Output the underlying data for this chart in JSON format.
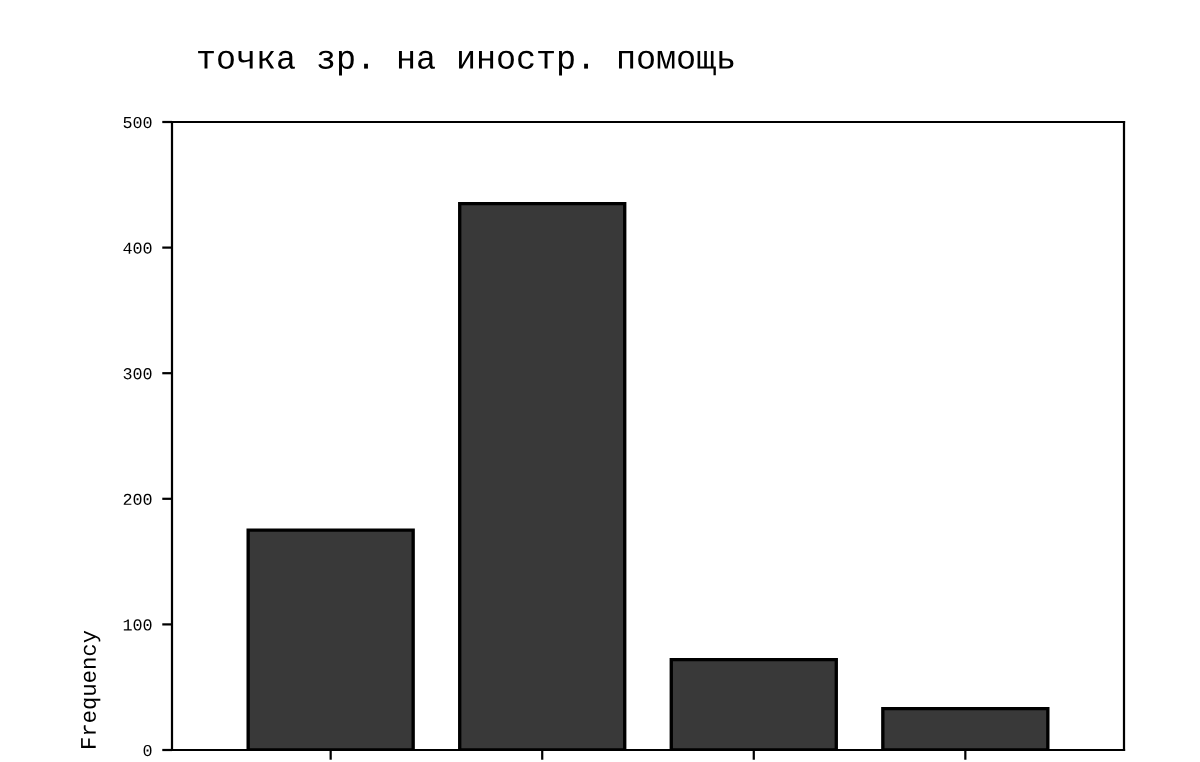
{
  "chart_data": {
    "type": "bar",
    "title": "точка зр. на иностр. помощь",
    "ylabel": "Frequency",
    "categories": [
      null,
      null,
      null,
      null
    ],
    "values": [
      175,
      435,
      72,
      33
    ],
    "color": "#393939",
    "ylim": [
      0,
      500
    ],
    "yticks": [
      0,
      100,
      200,
      300,
      400,
      500
    ],
    "grid": false
  }
}
